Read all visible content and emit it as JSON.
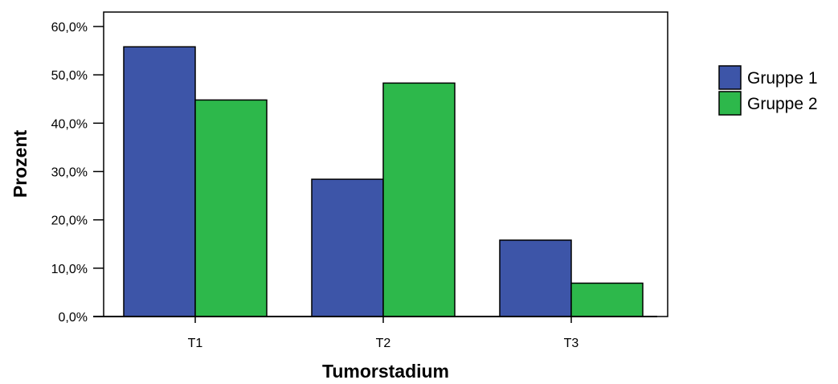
{
  "chart_data": {
    "type": "bar",
    "title": "",
    "xlabel": "Tumorstadium",
    "ylabel": "Prozent",
    "categories": [
      "T1",
      "T2",
      "T3"
    ],
    "series": [
      {
        "name": "Gruppe 1",
        "color": "#3d55a8",
        "values": [
          55.8,
          28.4,
          15.8
        ]
      },
      {
        "name": "Gruppe 2",
        "color": "#2db84b",
        "values": [
          44.8,
          48.3,
          6.9
        ]
      }
    ],
    "ylim": [
      0,
      60
    ],
    "yticks": [
      {
        "value": 0,
        "label": "0,0%"
      },
      {
        "value": 10,
        "label": "10,0%"
      },
      {
        "value": 20,
        "label": "20,0%"
      },
      {
        "value": 30,
        "label": "30,0%"
      },
      {
        "value": 40,
        "label": "40,0%"
      },
      {
        "value": 50,
        "label": "50,0%"
      },
      {
        "value": 60,
        "label": "60,0%"
      }
    ],
    "grid": false,
    "legend_position": "right"
  }
}
